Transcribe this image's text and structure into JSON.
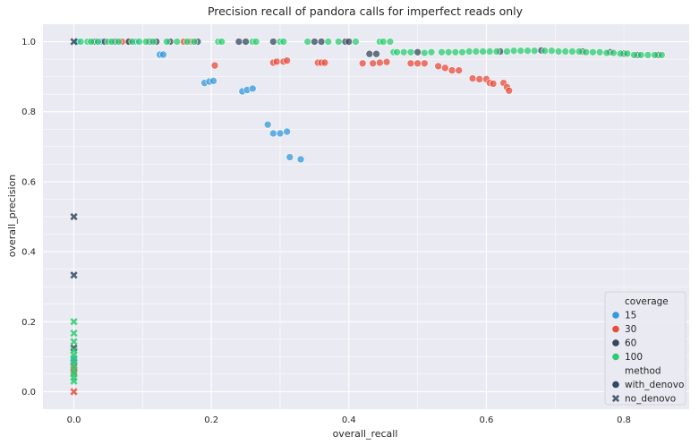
{
  "chart_data": {
    "type": "scatter",
    "title": "Precision recall of pandora calls for imperfect reads only",
    "xlabel": "overall_recall",
    "ylabel": "overall_precision",
    "xlim": [
      -0.045,
      0.895
    ],
    "ylim": [
      -0.05,
      1.05
    ],
    "xticks": [
      0.0,
      0.2,
      0.4,
      0.6,
      0.8
    ],
    "xtick_labels": [
      "0.0",
      "0.2",
      "0.4",
      "0.6",
      "0.8"
    ],
    "yticks": [
      0.0,
      0.2,
      0.4,
      0.6,
      0.8,
      1.0
    ],
    "ytick_labels": [
      "0.0",
      "0.2",
      "0.4",
      "0.6",
      "0.8",
      "1.0"
    ],
    "grid": true,
    "background": "#eaeaf2",
    "legend": {
      "position": "lower-right",
      "hue_title": "coverage",
      "hue_entries": [
        {
          "label": "15",
          "color": "#3498db"
        },
        {
          "label": "30",
          "color": "#e74c3c"
        },
        {
          "label": "60",
          "color": "#34495e"
        },
        {
          "label": "100",
          "color": "#2ecc71"
        }
      ],
      "style_title": "method",
      "style_entries": [
        {
          "label": "with_denovo",
          "marker": "circle"
        },
        {
          "label": "no_denovo",
          "marker": "x"
        }
      ]
    },
    "series": [
      {
        "coverage": "15",
        "method": "with_denovo",
        "color": "#3498db",
        "points": [
          [
            0.005,
            1.0
          ],
          [
            0.04,
            1.0
          ],
          [
            0.09,
            1.0
          ],
          [
            0.125,
            0.963
          ],
          [
            0.13,
            0.963
          ],
          [
            0.19,
            0.882
          ],
          [
            0.197,
            0.886
          ],
          [
            0.203,
            0.888
          ],
          [
            0.245,
            0.858
          ],
          [
            0.252,
            0.862
          ],
          [
            0.26,
            0.866
          ],
          [
            0.282,
            0.763
          ],
          [
            0.29,
            0.738
          ],
          [
            0.3,
            0.738
          ],
          [
            0.31,
            0.743
          ],
          [
            0.314,
            0.67
          ],
          [
            0.33,
            0.664
          ]
        ]
      },
      {
        "coverage": "15",
        "method": "no_denovo",
        "color": "#3498db",
        "points": [
          [
            0.0,
            0.095
          ],
          [
            0.0,
            0.085
          ]
        ]
      },
      {
        "coverage": "30",
        "method": "with_denovo",
        "color": "#e74c3c",
        "points": [
          [
            0.07,
            1.0
          ],
          [
            0.08,
            1.0
          ],
          [
            0.16,
            1.0
          ],
          [
            0.17,
            1.0
          ],
          [
            0.205,
            0.932
          ],
          [
            0.29,
            0.94
          ],
          [
            0.295,
            0.943
          ],
          [
            0.305,
            0.943
          ],
          [
            0.31,
            0.946
          ],
          [
            0.355,
            0.94
          ],
          [
            0.36,
            0.94
          ],
          [
            0.365,
            0.94
          ],
          [
            0.42,
            0.938
          ],
          [
            0.435,
            0.938
          ],
          [
            0.445,
            0.94
          ],
          [
            0.455,
            0.942
          ],
          [
            0.49,
            0.938
          ],
          [
            0.5,
            0.938
          ],
          [
            0.51,
            0.938
          ],
          [
            0.53,
            0.93
          ],
          [
            0.54,
            0.925
          ],
          [
            0.55,
            0.918
          ],
          [
            0.56,
            0.918
          ],
          [
            0.58,
            0.895
          ],
          [
            0.59,
            0.893
          ],
          [
            0.6,
            0.893
          ],
          [
            0.605,
            0.882
          ],
          [
            0.61,
            0.88
          ],
          [
            0.625,
            0.882
          ],
          [
            0.63,
            0.87
          ],
          [
            0.633,
            0.86
          ]
        ]
      },
      {
        "coverage": "30",
        "method": "no_denovo",
        "color": "#e74c3c",
        "points": [
          [
            0.0,
            0.07
          ],
          [
            0.0,
            0.055
          ]
        ]
      },
      {
        "coverage": "60",
        "method": "with_denovo",
        "color": "#34495e",
        "points": [
          [
            0.03,
            1.0
          ],
          [
            0.045,
            1.0
          ],
          [
            0.06,
            1.0
          ],
          [
            0.08,
            1.0
          ],
          [
            0.11,
            1.0
          ],
          [
            0.12,
            1.0
          ],
          [
            0.14,
            1.0
          ],
          [
            0.18,
            1.0
          ],
          [
            0.24,
            1.0
          ],
          [
            0.25,
            1.0
          ],
          [
            0.29,
            1.0
          ],
          [
            0.35,
            1.0
          ],
          [
            0.36,
            1.0
          ],
          [
            0.395,
            1.0
          ],
          [
            0.4,
            1.0
          ],
          [
            0.43,
            0.965
          ],
          [
            0.44,
            0.965
          ],
          [
            0.5,
            0.97
          ],
          [
            0.62,
            0.972
          ],
          [
            0.68,
            0.975
          ],
          [
            0.74,
            0.972
          ],
          [
            0.78,
            0.97
          ],
          [
            0.8,
            0.966
          ],
          [
            0.82,
            0.962
          ],
          [
            0.85,
            0.962
          ]
        ]
      },
      {
        "coverage": "60",
        "method": "no_denovo",
        "color": "#34495e",
        "points": [
          [
            0.0,
            1.0
          ],
          [
            0.0,
            0.5
          ],
          [
            0.0,
            0.333
          ],
          [
            0.0,
            0.125
          ]
        ]
      },
      {
        "coverage": "100",
        "method": "with_denovo",
        "color": "#2ecc71",
        "points": [
          [
            0.01,
            1.0
          ],
          [
            0.02,
            1.0
          ],
          [
            0.025,
            1.0
          ],
          [
            0.035,
            1.0
          ],
          [
            0.05,
            1.0
          ],
          [
            0.055,
            1.0
          ],
          [
            0.065,
            1.0
          ],
          [
            0.085,
            1.0
          ],
          [
            0.095,
            1.0
          ],
          [
            0.105,
            1.0
          ],
          [
            0.115,
            1.0
          ],
          [
            0.135,
            1.0
          ],
          [
            0.15,
            1.0
          ],
          [
            0.165,
            1.0
          ],
          [
            0.175,
            1.0
          ],
          [
            0.21,
            1.0
          ],
          [
            0.215,
            1.0
          ],
          [
            0.26,
            1.0
          ],
          [
            0.265,
            1.0
          ],
          [
            0.3,
            1.0
          ],
          [
            0.305,
            1.0
          ],
          [
            0.34,
            1.0
          ],
          [
            0.37,
            1.0
          ],
          [
            0.385,
            1.0
          ],
          [
            0.41,
            1.0
          ],
          [
            0.445,
            1.0
          ],
          [
            0.45,
            1.0
          ],
          [
            0.46,
            1.0
          ],
          [
            0.465,
            0.97
          ],
          [
            0.47,
            0.97
          ],
          [
            0.48,
            0.97
          ],
          [
            0.49,
            0.97
          ],
          [
            0.51,
            0.968
          ],
          [
            0.52,
            0.97
          ],
          [
            0.535,
            0.97
          ],
          [
            0.545,
            0.97
          ],
          [
            0.555,
            0.97
          ],
          [
            0.565,
            0.97
          ],
          [
            0.575,
            0.972
          ],
          [
            0.585,
            0.972
          ],
          [
            0.595,
            0.972
          ],
          [
            0.605,
            0.972
          ],
          [
            0.615,
            0.972
          ],
          [
            0.63,
            0.972
          ],
          [
            0.64,
            0.974
          ],
          [
            0.65,
            0.974
          ],
          [
            0.66,
            0.974
          ],
          [
            0.67,
            0.974
          ],
          [
            0.685,
            0.974
          ],
          [
            0.695,
            0.974
          ],
          [
            0.705,
            0.972
          ],
          [
            0.715,
            0.972
          ],
          [
            0.725,
            0.972
          ],
          [
            0.735,
            0.972
          ],
          [
            0.745,
            0.97
          ],
          [
            0.755,
            0.97
          ],
          [
            0.765,
            0.97
          ],
          [
            0.775,
            0.968
          ],
          [
            0.785,
            0.968
          ],
          [
            0.795,
            0.966
          ],
          [
            0.805,
            0.966
          ],
          [
            0.815,
            0.962
          ],
          [
            0.825,
            0.962
          ],
          [
            0.835,
            0.962
          ],
          [
            0.845,
            0.962
          ],
          [
            0.855,
            0.962
          ]
        ]
      },
      {
        "coverage": "100",
        "method": "no_denovo",
        "color": "#2ecc71",
        "points": [
          [
            0.0,
            0.2
          ],
          [
            0.0,
            0.167
          ],
          [
            0.0,
            0.143
          ],
          [
            0.0,
            0.118
          ],
          [
            0.0,
            0.105
          ],
          [
            0.0,
            0.09
          ],
          [
            0.0,
            0.075
          ],
          [
            0.0,
            0.062
          ],
          [
            0.0,
            0.05
          ],
          [
            0.0,
            0.04
          ],
          [
            0.0,
            0.03
          ]
        ]
      },
      {
        "coverage": "30",
        "method": "no_denovo",
        "color": "#e74c3c",
        "points": [
          [
            0.0,
            0.0
          ]
        ]
      }
    ]
  }
}
